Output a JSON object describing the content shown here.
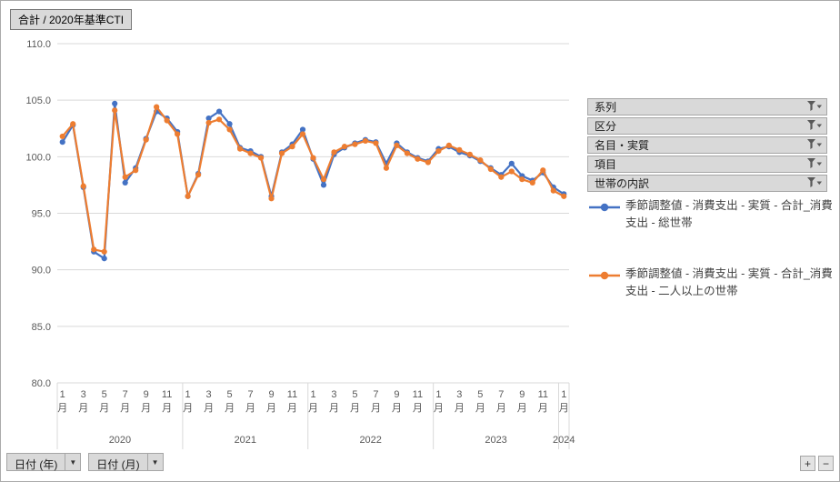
{
  "title": "合計 / 2020年基準CTI",
  "filters": [
    {
      "label": "系列"
    },
    {
      "label": "区分"
    },
    {
      "label": "名目・実質"
    },
    {
      "label": "項目"
    },
    {
      "label": "世帯の内訳"
    }
  ],
  "legend": [
    {
      "label": "季節調整値 - 消費支出 - 実質 - 合計_消費支出 - 総世帯",
      "color": "#4472C4"
    },
    {
      "label": "季節調整値 - 消費支出 - 実質 - 合計_消費支出 - 二人以上の世帯",
      "color": "#ED7D31"
    }
  ],
  "axis_fields": [
    {
      "label": "日付 (年)"
    },
    {
      "label": "日付 (月)"
    }
  ],
  "zoom_buttons": {
    "expand": "+",
    "collapse": "−"
  },
  "chart_data": {
    "type": "line",
    "title": "合計 / 2020年基準CTI",
    "ylim": [
      80,
      110
    ],
    "yticks": [
      80,
      85,
      90,
      95,
      100,
      105,
      110
    ],
    "grid": true,
    "legend_position": "right",
    "month_tick_months": [
      1,
      3,
      5,
      7,
      9,
      11
    ],
    "month_suffix": "月",
    "year_groups": [
      {
        "label": "2020",
        "start": 0,
        "count": 12
      },
      {
        "label": "2021",
        "start": 12,
        "count": 12
      },
      {
        "label": "2022",
        "start": 24,
        "count": 12
      },
      {
        "label": "2023",
        "start": 36,
        "count": 12
      },
      {
        "label": "2024",
        "start": 48,
        "count": 1
      }
    ],
    "x": [
      "2020/1",
      "2020/2",
      "2020/3",
      "2020/4",
      "2020/5",
      "2020/6",
      "2020/7",
      "2020/8",
      "2020/9",
      "2020/10",
      "2020/11",
      "2020/12",
      "2021/1",
      "2021/2",
      "2021/3",
      "2021/4",
      "2021/5",
      "2021/6",
      "2021/7",
      "2021/8",
      "2021/9",
      "2021/10",
      "2021/11",
      "2021/12",
      "2022/1",
      "2022/2",
      "2022/3",
      "2022/4",
      "2022/5",
      "2022/6",
      "2022/7",
      "2022/8",
      "2022/9",
      "2022/10",
      "2022/11",
      "2022/12",
      "2023/1",
      "2023/2",
      "2023/3",
      "2023/4",
      "2023/5",
      "2023/6",
      "2023/7",
      "2023/8",
      "2023/9",
      "2023/10",
      "2023/11",
      "2023/12",
      "2024/1"
    ],
    "series": [
      {
        "name": "季節調整値 - 消費支出 - 実質 - 合計_消費支出 - 総世帯",
        "color": "#4472C4",
        "values": [
          101.3,
          102.8,
          97.3,
          91.6,
          91.0,
          104.7,
          97.7,
          99.0,
          101.6,
          104.0,
          103.4,
          102.2,
          96.5,
          98.5,
          103.4,
          104.0,
          102.9,
          100.8,
          100.5,
          100.0,
          96.5,
          100.4,
          101.1,
          102.4,
          99.8,
          97.5,
          100.2,
          100.8,
          101.2,
          101.5,
          101.3,
          99.4,
          101.2,
          100.4,
          99.9,
          99.6,
          100.7,
          100.9,
          100.4,
          100.1,
          99.6,
          99.0,
          98.4,
          99.4,
          98.3,
          97.9,
          98.6,
          97.3,
          96.7
        ]
      },
      {
        "name": "季節調整値 - 消費支出 - 実質 - 合計_消費支出 - 二人以上の世帯",
        "color": "#ED7D31",
        "values": [
          101.8,
          102.9,
          97.4,
          91.8,
          91.6,
          104.1,
          98.2,
          98.8,
          101.5,
          104.4,
          103.2,
          102.0,
          96.5,
          98.4,
          103.0,
          103.3,
          102.4,
          100.7,
          100.3,
          99.9,
          96.3,
          100.3,
          100.9,
          102.0,
          99.9,
          98.0,
          100.4,
          100.9,
          101.1,
          101.4,
          101.2,
          99.0,
          101.0,
          100.3,
          99.8,
          99.5,
          100.5,
          101.0,
          100.6,
          100.2,
          99.7,
          98.9,
          98.2,
          98.7,
          98.0,
          97.7,
          98.8,
          97.0,
          96.5
        ]
      }
    ]
  }
}
